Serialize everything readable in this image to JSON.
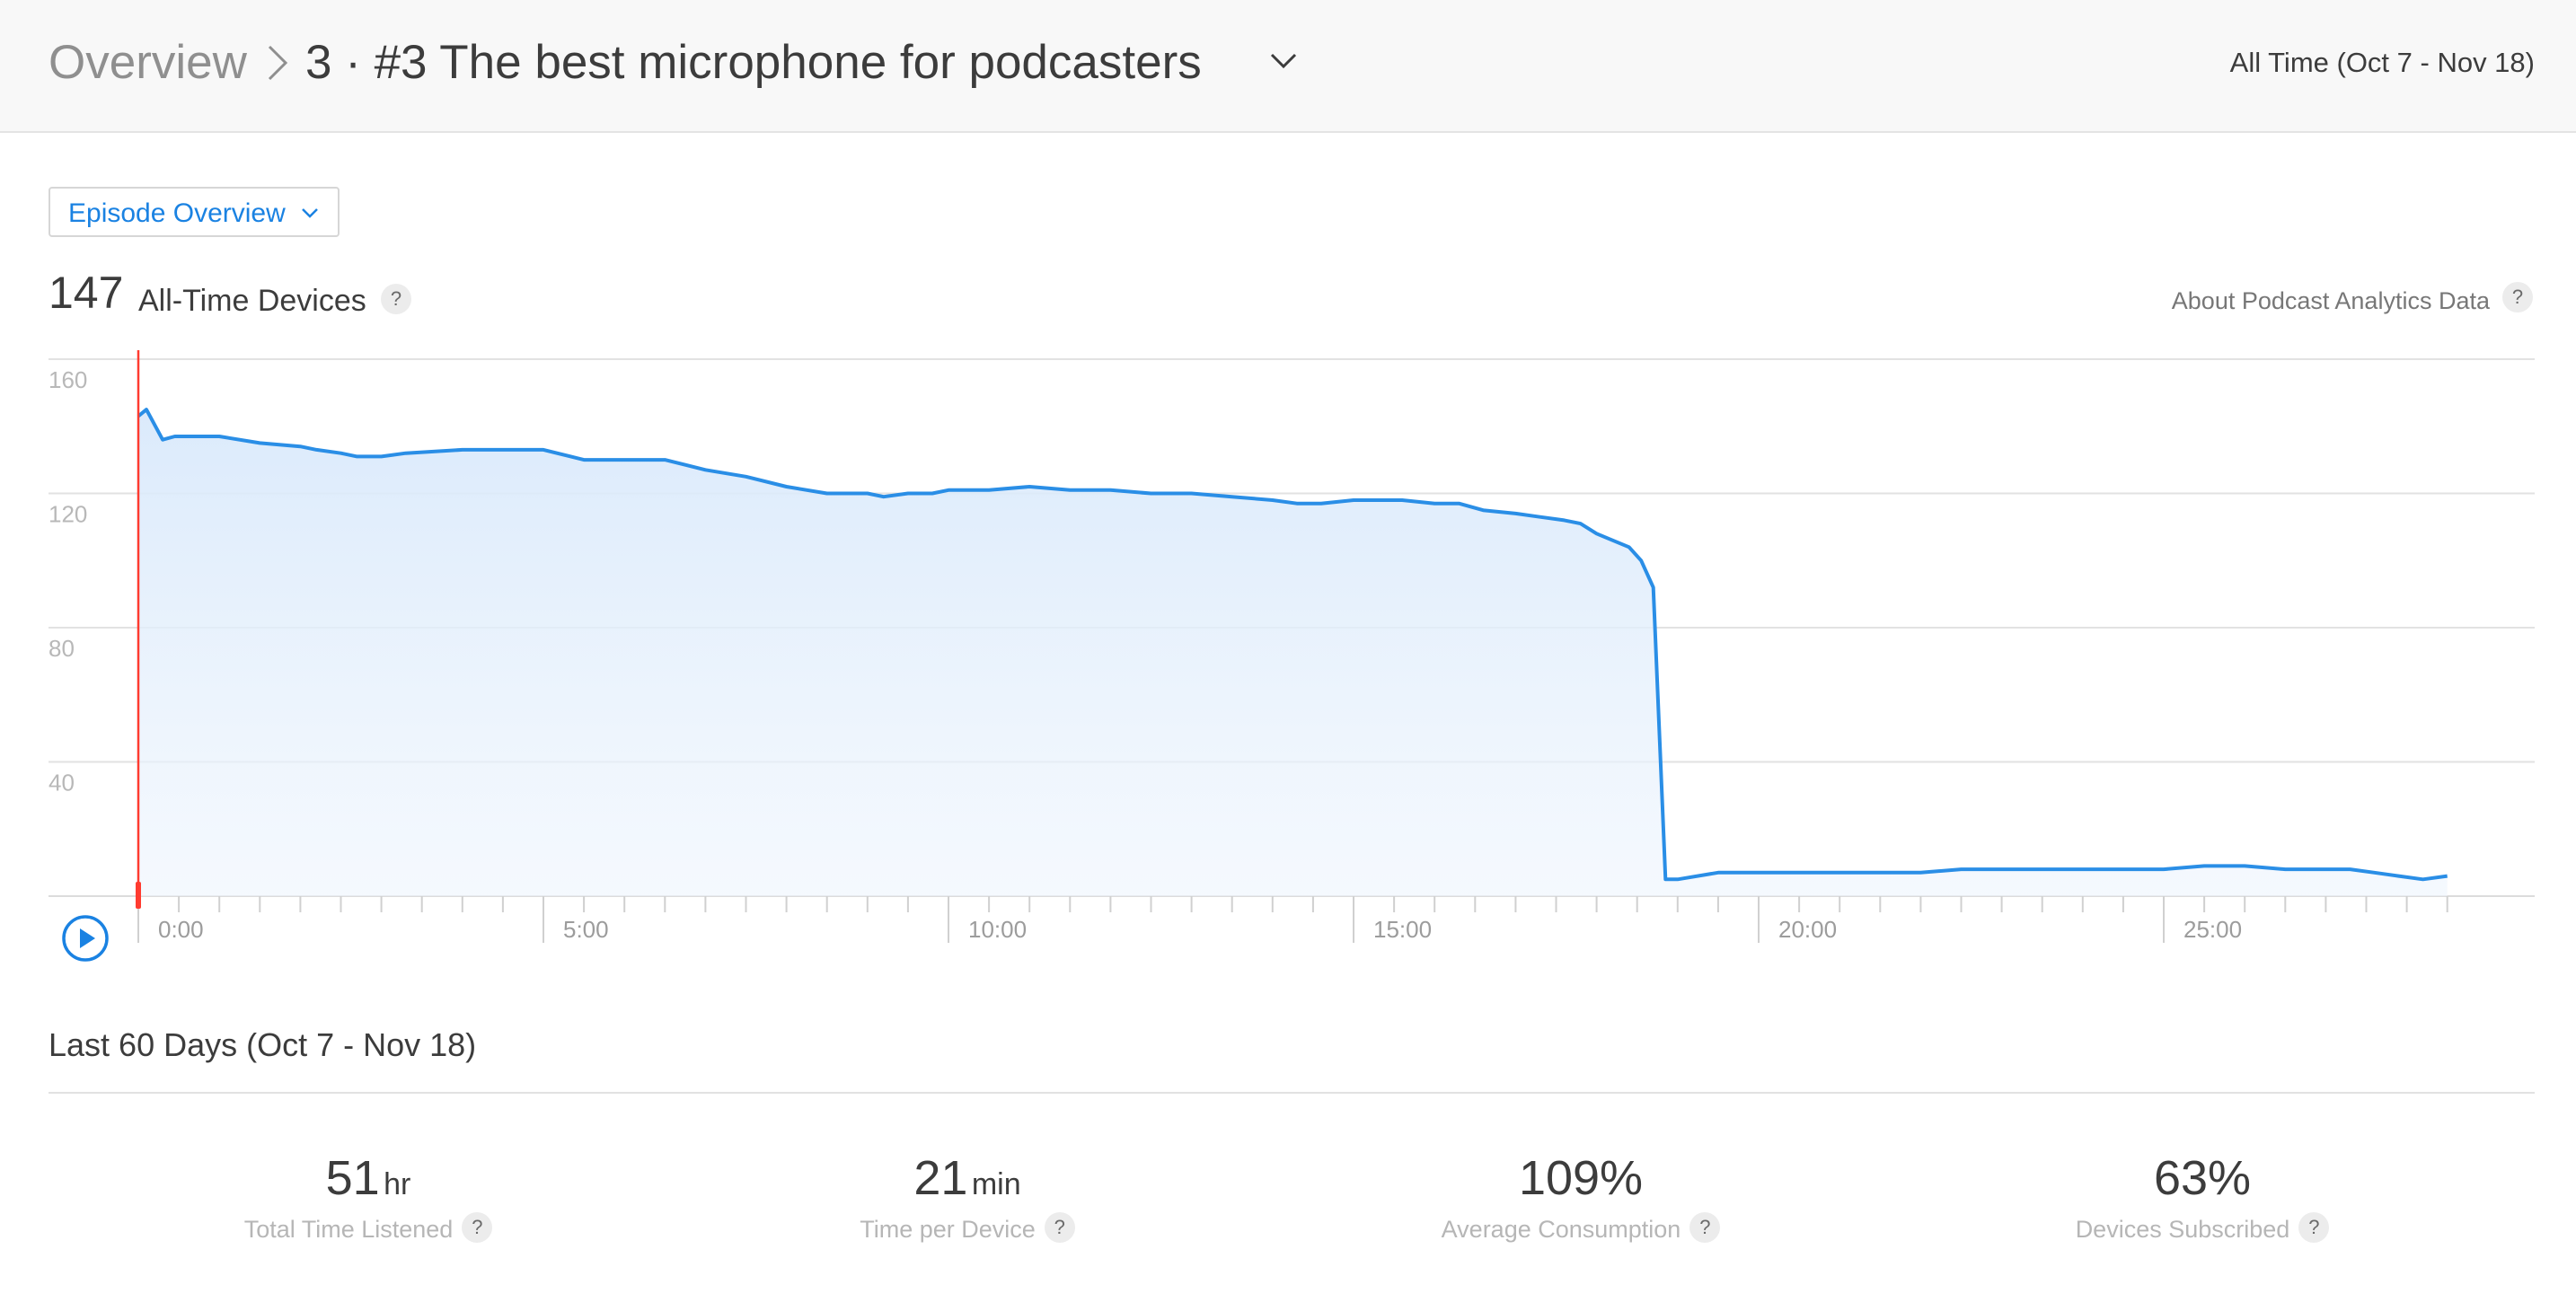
{
  "header": {
    "breadcrumb_root": "Overview",
    "episode_title": "3 · #3 The best microphone for podcasters",
    "date_range": "All Time (Oct 7 - Nov 18)"
  },
  "episode_select": {
    "label": "Episode Overview",
    "icon": "chevron-down-icon"
  },
  "summary": {
    "count": "147",
    "count_label": "All-Time Devices",
    "help": "?",
    "about_link": "About Podcast Analytics Data"
  },
  "colors": {
    "accent": "#1a82e2",
    "line": "#2a8ee6",
    "playhead": "#ff3b30"
  },
  "chart_data": {
    "type": "area",
    "xlabel": "",
    "ylabel": "",
    "ylim": [
      0,
      160
    ],
    "xlim": [
      0,
      28.5
    ],
    "grid": true,
    "y_ticks": [
      "40",
      "80",
      "120",
      "160"
    ],
    "x_ticks": [
      {
        "minute": 0,
        "label": "0:00"
      },
      {
        "minute": 5,
        "label": "5:00"
      },
      {
        "minute": 10,
        "label": "10:00"
      },
      {
        "minute": 15,
        "label": "15:00"
      },
      {
        "minute": 20,
        "label": "20:00"
      },
      {
        "minute": 25,
        "label": "25:00"
      }
    ],
    "playhead_minute": 0,
    "series": [
      {
        "x": [
          0,
          0.1,
          0.3,
          0.45,
          0.6,
          1.0,
          1.5,
          2.0,
          2.2,
          2.5,
          2.7,
          3.0,
          3.3,
          4.0,
          4.3,
          4.7,
          5.0,
          5.5,
          6.0,
          6.5,
          7.0,
          7.5,
          8.0,
          8.5,
          9.0,
          9.2,
          9.5,
          9.8,
          10.0,
          10.5,
          11.0,
          11.5,
          12.0,
          12.5,
          13.0,
          13.5,
          14.0,
          14.3,
          14.6,
          15.0,
          15.3,
          15.6,
          16.0,
          16.3,
          16.6,
          17.0,
          17.3,
          17.6,
          17.8,
          18.0,
          18.2,
          18.4,
          18.55,
          18.7,
          18.85,
          19.0,
          19.5,
          20.0,
          20.5,
          21.0,
          21.5,
          22.0,
          22.5,
          23.0,
          23.5,
          24.0,
          24.5,
          25.0,
          25.5,
          26.0,
          26.5,
          27.0,
          27.3,
          27.6,
          27.9,
          28.2,
          28.5
        ],
        "y": [
          143,
          145,
          136,
          137,
          137,
          137,
          135,
          134,
          133,
          132,
          131,
          131,
          132,
          133,
          133,
          133,
          133,
          130,
          130,
          130,
          127,
          125,
          122,
          120,
          120,
          119,
          120,
          120,
          121,
          121,
          122,
          121,
          121,
          120,
          120,
          119,
          118,
          117,
          117,
          118,
          118,
          118,
          117,
          117,
          115,
          114,
          113,
          112,
          111,
          108,
          106,
          104,
          100,
          92,
          5,
          5,
          7,
          7,
          7,
          7,
          7,
          7,
          8,
          8,
          8,
          8,
          8,
          8,
          9,
          9,
          8,
          8,
          8,
          7,
          6,
          5,
          6
        ]
      }
    ]
  },
  "section": {
    "title": "Last 60 Days (Oct 7 - Nov 18)"
  },
  "stats": [
    {
      "value": "51",
      "unit": "hr",
      "caption": "Total Time Listened"
    },
    {
      "value": "21",
      "unit": "min",
      "caption": "Time per Device"
    },
    {
      "value": "109%",
      "unit": "",
      "caption": "Average Consumption"
    },
    {
      "value": "63%",
      "unit": "",
      "caption": "Devices Subscribed"
    }
  ]
}
